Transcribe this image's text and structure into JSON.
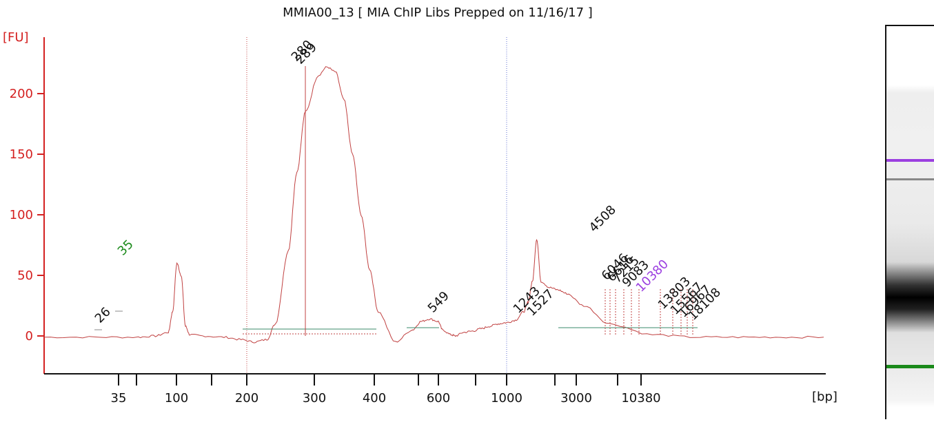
{
  "chart_data": {
    "type": "line",
    "title": "MMIA00_13  [ MIA ChIP Libs Prepped on 11/16/17 ]",
    "ylabel": "[FU]",
    "xlabel": "[bp]",
    "ylim": [
      -30,
      245
    ],
    "y_ticks": [
      0,
      50,
      100,
      150,
      200
    ],
    "x_tick_labels": [
      "35",
      "100",
      "200",
      "300",
      "400",
      "600",
      "1000",
      "3000",
      "10380"
    ],
    "lower_marker_bp": 35,
    "upper_marker_bp": 10380,
    "peaks": [
      {
        "label": "26",
        "color": "#111111"
      },
      {
        "label": "35",
        "color": "#1a8a1a"
      },
      {
        "label": "280",
        "color": "#111111"
      },
      {
        "label": "289",
        "color": "#111111"
      },
      {
        "label": "549",
        "color": "#111111"
      },
      {
        "label": "1243",
        "color": "#111111"
      },
      {
        "label": "1527",
        "color": "#111111"
      },
      {
        "label": "4508",
        "color": "#111111"
      },
      {
        "label": "6046",
        "color": "#111111"
      },
      {
        "label": "6616",
        "color": "#111111"
      },
      {
        "label": "7215",
        "color": "#111111"
      },
      {
        "label": "9083",
        "color": "#111111"
      },
      {
        "label": "10380",
        "color": "#9b3fe0"
      },
      {
        "label": "13803",
        "color": "#111111"
      },
      {
        "label": "15567",
        "color": "#111111"
      },
      {
        "label": "16967",
        "color": "#111111"
      },
      {
        "label": "18108",
        "color": "#111111"
      }
    ],
    "trace_points_x_sec": [
      18,
      30,
      40,
      44,
      47,
      48,
      49,
      50,
      51,
      52,
      55,
      60,
      64,
      67,
      70,
      72,
      75,
      77,
      79,
      82,
      84,
      86,
      88,
      90,
      92,
      94,
      96,
      100,
      104,
      106,
      108,
      110,
      111,
      113,
      114,
      116,
      118,
      120,
      122,
      124,
      126,
      128,
      130,
      131,
      132,
      133,
      134,
      136,
      138,
      140,
      144,
      150,
      160,
      170,
      180,
      190,
      200
    ],
    "trace_points_y_fu": [
      -1,
      -1,
      -1,
      0,
      3,
      20,
      60,
      50,
      8,
      1,
      0,
      -1,
      -3,
      -5,
      -3,
      10,
      70,
      135,
      185,
      215,
      222,
      218,
      195,
      150,
      100,
      55,
      20,
      -5,
      5,
      12,
      14,
      12,
      5,
      1,
      0,
      3,
      4,
      6,
      8,
      10,
      11,
      13,
      20,
      28,
      45,
      80,
      45,
      40,
      38,
      35,
      25,
      10,
      1,
      -1,
      -1,
      -1,
      -1
    ],
    "colors": {
      "axis": "#d42020",
      "trace": "#c04040",
      "lower_marker": "#1a8a1a",
      "upper_marker": "#9b3fe0",
      "baseline": "#3a8a6a"
    }
  }
}
